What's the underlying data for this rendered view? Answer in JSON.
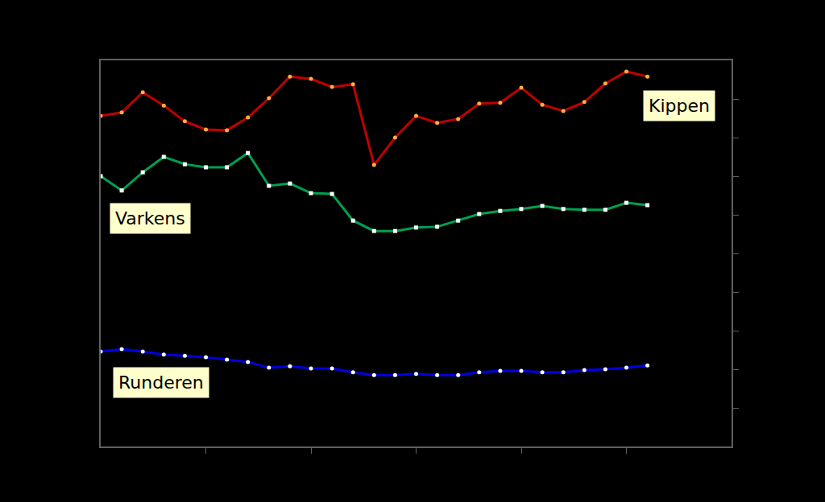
{
  "chart_data": {
    "type": "line",
    "x": [
      0,
      1,
      2,
      3,
      4,
      5,
      6,
      7,
      8,
      9,
      10,
      11,
      12,
      13,
      14,
      15,
      16,
      17,
      18,
      19,
      20,
      21,
      22,
      23,
      24,
      25,
      26
    ],
    "series": [
      {
        "name": "Kippen",
        "color": "#c00000",
        "marker": "circle",
        "values": [
          8.56,
          8.65,
          9.17,
          8.83,
          8.42,
          8.21,
          8.19,
          8.52,
          9.02,
          9.58,
          9.52,
          9.31,
          9.38,
          7.29,
          8.0,
          8.56,
          8.38,
          8.48,
          8.88,
          8.9,
          9.29,
          8.85,
          8.69,
          8.92,
          9.4,
          9.71,
          9.58
        ]
      },
      {
        "name": "Varkens",
        "color": "#00a050",
        "marker": "square",
        "values": [
          7.0,
          6.63,
          7.1,
          7.5,
          7.31,
          7.23,
          7.23,
          7.6,
          6.75,
          6.81,
          6.56,
          6.54,
          5.85,
          5.58,
          5.58,
          5.67,
          5.69,
          5.85,
          6.02,
          6.1,
          6.15,
          6.23,
          6.15,
          6.13,
          6.13,
          6.31,
          6.25
        ]
      },
      {
        "name": "Runderen",
        "color": "#0000e0",
        "marker": "circle",
        "values": [
          2.46,
          2.52,
          2.46,
          2.38,
          2.35,
          2.31,
          2.25,
          2.19,
          2.04,
          2.08,
          2.02,
          2.02,
          1.92,
          1.85,
          1.85,
          1.88,
          1.85,
          1.85,
          1.92,
          1.96,
          1.96,
          1.92,
          1.92,
          1.98,
          2.0,
          2.04,
          2.1
        ]
      }
    ],
    "xlim": [
      0,
      30
    ],
    "xticks": [
      5,
      10,
      15,
      20,
      25
    ],
    "ylim": [
      0,
      10
    ],
    "yticks": [
      1,
      2,
      3,
      4,
      5,
      6,
      7,
      8,
      9
    ],
    "grid": false,
    "tick_labels": false
  }
}
